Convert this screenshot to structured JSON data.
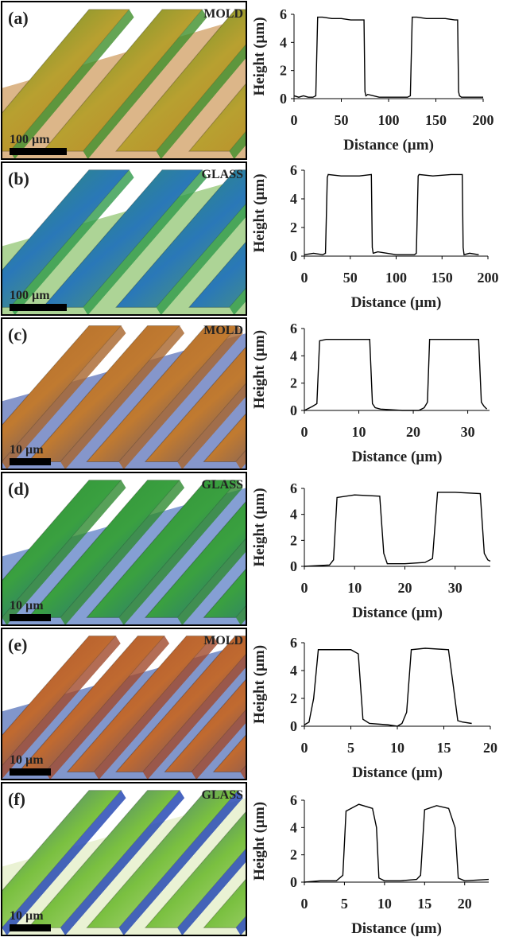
{
  "chart_data": [
    {
      "type": "line",
      "xlabel": "Distance (µm)",
      "ylabel": "Height (µm)",
      "color": "#000000",
      "xlim": [
        0,
        200
      ],
      "xticks": [
        0,
        50,
        100,
        150,
        200
      ],
      "ylim": [
        0,
        6
      ],
      "yticks": [
        0,
        2,
        4,
        6
      ],
      "x": [
        0,
        5,
        10,
        15,
        20,
        23,
        25,
        26,
        30,
        40,
        50,
        60,
        70,
        74,
        75,
        76,
        78,
        90,
        100,
        110,
        120,
        123,
        125,
        126,
        130,
        140,
        150,
        160,
        170,
        173,
        174,
        175,
        177,
        190,
        200
      ],
      "values": [
        0.2,
        0.1,
        0.2,
        0.1,
        0.1,
        0.2,
        5.8,
        5.8,
        5.8,
        5.7,
        5.7,
        5.6,
        5.6,
        5.6,
        0.5,
        0.2,
        0.3,
        0.1,
        0.1,
        0.1,
        0.1,
        0.2,
        5.8,
        5.8,
        5.8,
        5.7,
        5.7,
        5.7,
        5.6,
        5.6,
        0.5,
        0.2,
        0.1,
        0.1,
        0.1
      ]
    },
    {
      "type": "line",
      "xlabel": "Distance (µm)",
      "ylabel": "Height (µm)",
      "color": "#000000",
      "xlim": [
        0,
        200
      ],
      "xticks": [
        0,
        50,
        100,
        150,
        200
      ],
      "ylim": [
        0,
        6
      ],
      "yticks": [
        0,
        2,
        4,
        6
      ],
      "x": [
        0,
        10,
        20,
        23,
        25,
        26,
        40,
        60,
        73,
        74,
        75,
        80,
        100,
        120,
        122,
        124,
        125,
        140,
        160,
        172,
        173,
        174,
        180,
        190
      ],
      "values": [
        0.1,
        0.2,
        0.1,
        0.2,
        5.5,
        5.7,
        5.6,
        5.6,
        5.7,
        0.6,
        0.2,
        0.3,
        0.1,
        0.1,
        0.2,
        5.6,
        5.7,
        5.6,
        5.7,
        5.7,
        0.6,
        0.1,
        0.2,
        0.1
      ]
    },
    {
      "type": "line",
      "xlabel": "Distance (µm)",
      "ylabel": "Height (µm)",
      "color": "#000000",
      "xlim": [
        0,
        34
      ],
      "xticks": [
        0,
        10,
        20,
        30
      ],
      "ylim": [
        0,
        6
      ],
      "yticks": [
        0,
        2,
        4,
        6
      ],
      "x": [
        0,
        1.5,
        2.3,
        2.8,
        4,
        8,
        12,
        12.5,
        13,
        14,
        18,
        21,
        22,
        22.6,
        23,
        27,
        32,
        32.5,
        33,
        33.5
      ],
      "values": [
        0,
        0.3,
        0.5,
        5.1,
        5.2,
        5.2,
        5.2,
        0.5,
        0.2,
        0.1,
        0,
        0,
        0.2,
        0.6,
        5.2,
        5.2,
        5.2,
        0.6,
        0.3,
        0.1
      ]
    },
    {
      "type": "line",
      "xlabel": "Distance (µm)",
      "ylabel": "Height (µm)",
      "color": "#000000",
      "xlim": [
        0,
        37
      ],
      "xticks": [
        0,
        10,
        20,
        30
      ],
      "ylim": [
        0,
        6
      ],
      "yticks": [
        0,
        2,
        4,
        6
      ],
      "x": [
        0,
        5,
        5.8,
        6.5,
        10,
        15,
        15.8,
        16.5,
        20,
        24,
        25.5,
        26.5,
        30,
        35,
        35.8,
        36.5,
        37
      ],
      "values": [
        0,
        0.1,
        0.5,
        5.3,
        5.5,
        5.4,
        1.0,
        0.2,
        0.2,
        0.3,
        0.6,
        5.7,
        5.7,
        5.6,
        1.0,
        0.5,
        0.4
      ]
    },
    {
      "type": "line",
      "xlabel": "Distance (µm)",
      "ylabel": "Height (µm)",
      "color": "#000000",
      "xlim": [
        0,
        20
      ],
      "xticks": [
        0,
        5,
        10,
        15,
        20
      ],
      "ylim": [
        0,
        6
      ],
      "yticks": [
        0,
        2,
        4,
        6
      ],
      "x": [
        0,
        0.5,
        1,
        1.5,
        3,
        5,
        5.8,
        6.3,
        7,
        9,
        10,
        10.5,
        11,
        11.5,
        13,
        15.5,
        16,
        16.5,
        17,
        18
      ],
      "values": [
        0.1,
        0.3,
        2,
        5.5,
        5.5,
        5.5,
        5.2,
        0.5,
        0.2,
        0.1,
        0,
        0.2,
        1,
        5.5,
        5.6,
        5.5,
        3,
        0.4,
        0.3,
        0.2
      ]
    },
    {
      "type": "line",
      "xlabel": "Distance (µm)",
      "ylabel": "Height (µm)",
      "color": "#000000",
      "xlim": [
        0,
        23
      ],
      "xticks": [
        0,
        5,
        10,
        15,
        20
      ],
      "ylim": [
        0,
        6
      ],
      "yticks": [
        0,
        2,
        4,
        6
      ],
      "x": [
        0,
        2,
        4,
        4.8,
        5.2,
        6.8,
        8.5,
        9,
        9.3,
        10,
        12,
        14,
        14.5,
        15,
        16.5,
        18,
        18.8,
        19.2,
        20,
        23
      ],
      "values": [
        0,
        0.1,
        0.1,
        0.5,
        5.2,
        5.7,
        5.4,
        4,
        0.3,
        0.1,
        0.1,
        0.2,
        0.5,
        5.3,
        5.6,
        5.4,
        4,
        0.3,
        0.1,
        0.2
      ]
    }
  ],
  "panels": [
    {
      "label": "(a)",
      "material": "MOLD",
      "scale": "100 µm"
    },
    {
      "label": "(b)",
      "material": "GLASS",
      "scale": "100 µm"
    },
    {
      "label": "(c)",
      "material": "MOLD",
      "scale": "10 µm"
    },
    {
      "label": "(d)",
      "material": "GLASS",
      "scale": "10 µm"
    },
    {
      "label": "(e)",
      "material": "MOLD",
      "scale": "10 µm"
    },
    {
      "label": "(f)",
      "material": "GLASS",
      "scale": "10 µm"
    }
  ]
}
